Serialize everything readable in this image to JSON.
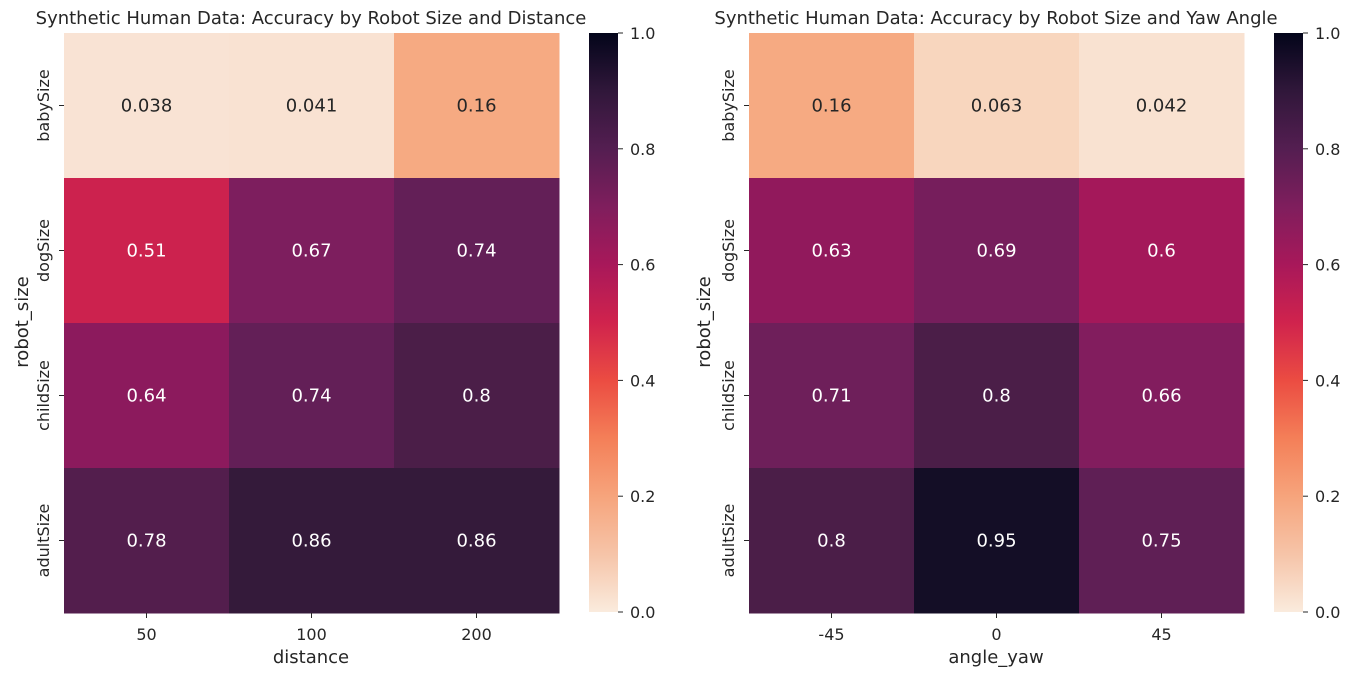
{
  "chart_data": [
    {
      "type": "heatmap",
      "title": "Synthetic Human Data: Accuracy by Robot Size and Distance",
      "xlabel": "distance",
      "ylabel": "robot_size",
      "x_categories": [
        "50",
        "100",
        "200"
      ],
      "y_categories": [
        "babySize",
        "dogSize",
        "childSize",
        "adultSize"
      ],
      "values": [
        [
          0.038,
          0.041,
          0.16
        ],
        [
          0.51,
          0.67,
          0.74
        ],
        [
          0.64,
          0.74,
          0.8
        ],
        [
          0.78,
          0.86,
          0.86
        ]
      ],
      "cell_labels": [
        [
          "0.038",
          "0.041",
          "0.16"
        ],
        [
          "0.51",
          "0.67",
          "0.74"
        ],
        [
          "0.64",
          "0.74",
          "0.8"
        ],
        [
          "0.78",
          "0.86",
          "0.86"
        ]
      ],
      "vmin": 0,
      "vmax": 1,
      "colormap": "rocket_r",
      "colorbar_ticks": [
        "0.0",
        "0.2",
        "0.4",
        "0.6",
        "0.8",
        "1.0"
      ]
    },
    {
      "type": "heatmap",
      "title": "Synthetic Human Data: Accuracy by Robot Size and Yaw Angle",
      "xlabel": "angle_yaw",
      "ylabel": "robot_size",
      "x_categories": [
        "-45",
        "0",
        "45"
      ],
      "y_categories": [
        "babySize",
        "dogSize",
        "childSize",
        "adultSize"
      ],
      "values": [
        [
          0.16,
          0.063,
          0.042
        ],
        [
          0.63,
          0.69,
          0.6
        ],
        [
          0.71,
          0.8,
          0.66
        ],
        [
          0.8,
          0.95,
          0.75
        ]
      ],
      "cell_labels": [
        [
          "0.16",
          "0.063",
          "0.042"
        ],
        [
          "0.63",
          "0.69",
          "0.6"
        ],
        [
          "0.71",
          "0.8",
          "0.66"
        ],
        [
          "0.8",
          "0.95",
          "0.75"
        ]
      ],
      "vmin": 0,
      "vmax": 1,
      "colormap": "rocket_r",
      "colorbar_ticks": [
        "0.0",
        "0.2",
        "0.4",
        "0.6",
        "0.8",
        "1.0"
      ]
    }
  ]
}
